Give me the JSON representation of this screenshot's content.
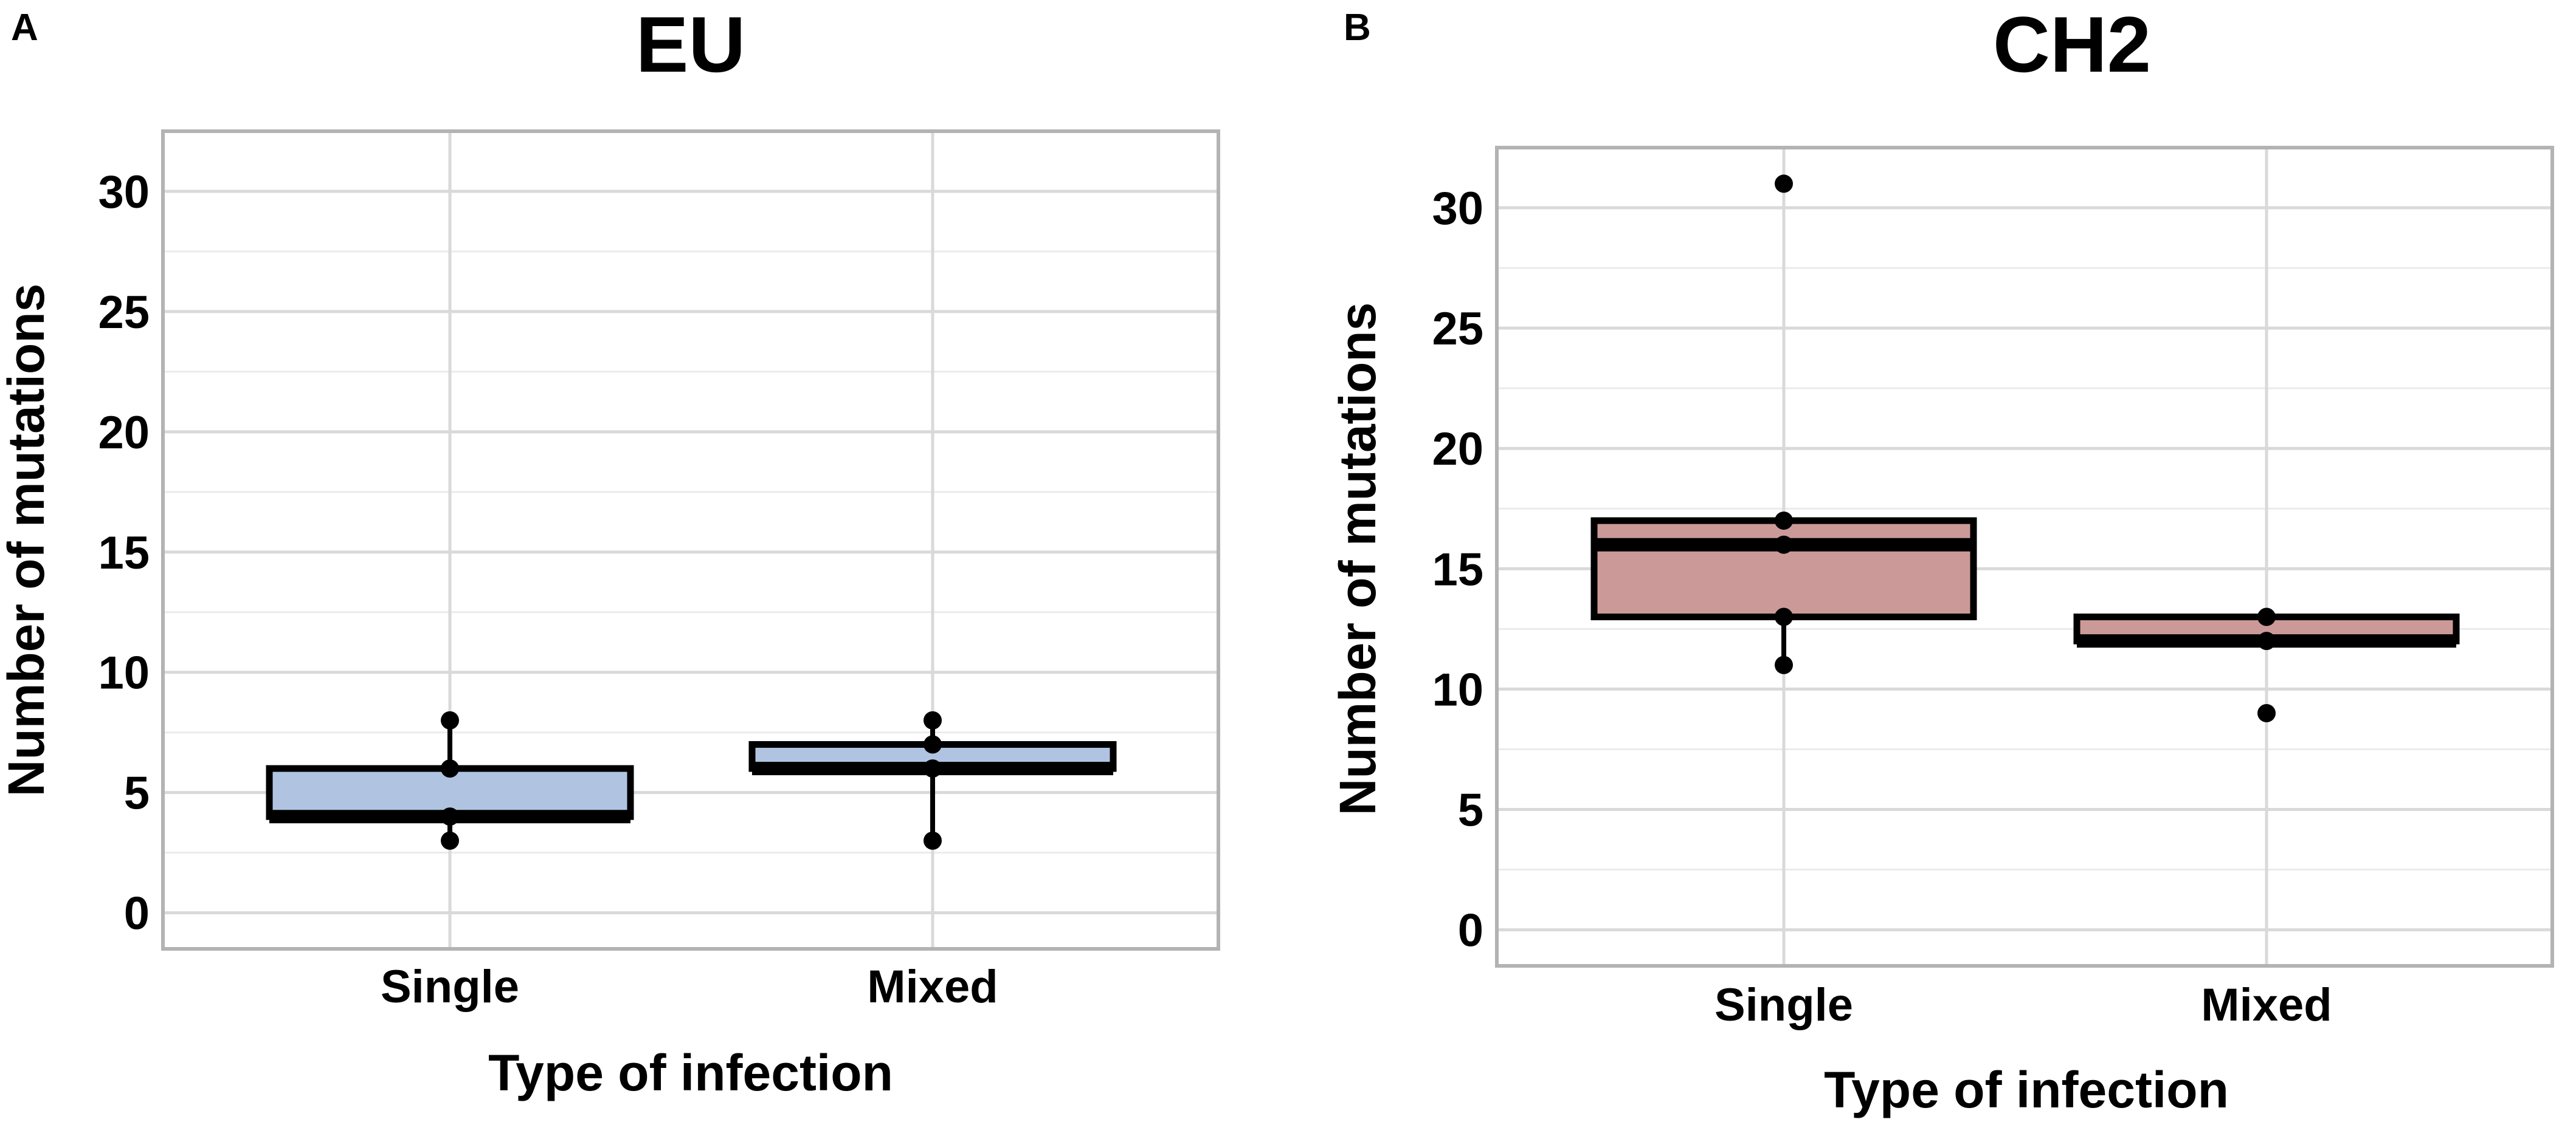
{
  "chart_data": [
    {
      "type": "boxplot",
      "panel_label": "A",
      "title": "EU",
      "xlabel": "Type of infection",
      "ylabel": "Number of mutations",
      "ylim": [
        -1.5,
        32.5
      ],
      "yticks": [
        0,
        5,
        10,
        15,
        20,
        25,
        30
      ],
      "ytick_labels": [
        "0",
        "5",
        "10",
        "15",
        "20",
        "25",
        "30"
      ],
      "categories": [
        "Single",
        "Mixed"
      ],
      "box_color": "#b0c4e2",
      "grid": true,
      "boxes": [
        {
          "category": "Single",
          "whisker_low": 3,
          "q1": 4,
          "median": 4,
          "q3": 6,
          "whisker_high": 8,
          "points": [
            3,
            4,
            6,
            8
          ]
        },
        {
          "category": "Mixed",
          "whisker_low": 3,
          "q1": 6,
          "median": 6,
          "q3": 7,
          "whisker_high": 8,
          "points": [
            3,
            6,
            7,
            8
          ]
        }
      ]
    },
    {
      "type": "boxplot",
      "panel_label": "B",
      "title": "CH2",
      "xlabel": "Type of infection",
      "ylabel": "Number of mutations",
      "ylim": [
        -1.5,
        32.5
      ],
      "yticks": [
        0,
        5,
        10,
        15,
        20,
        25,
        30
      ],
      "ytick_labels": [
        "0",
        "5",
        "10",
        "15",
        "20",
        "25",
        "30"
      ],
      "categories": [
        "Single",
        "Mixed"
      ],
      "box_color": "#cc9999",
      "grid": true,
      "boxes": [
        {
          "category": "Single",
          "whisker_low": 11,
          "q1": 13,
          "median": 16,
          "q3": 17,
          "whisker_high": 17,
          "points": [
            11,
            13,
            16,
            17,
            31
          ]
        },
        {
          "category": "Mixed",
          "whisker_low": 12,
          "q1": 12,
          "median": 12,
          "q3": 13,
          "whisker_high": 13,
          "points": [
            9,
            12,
            13
          ]
        }
      ]
    }
  ]
}
